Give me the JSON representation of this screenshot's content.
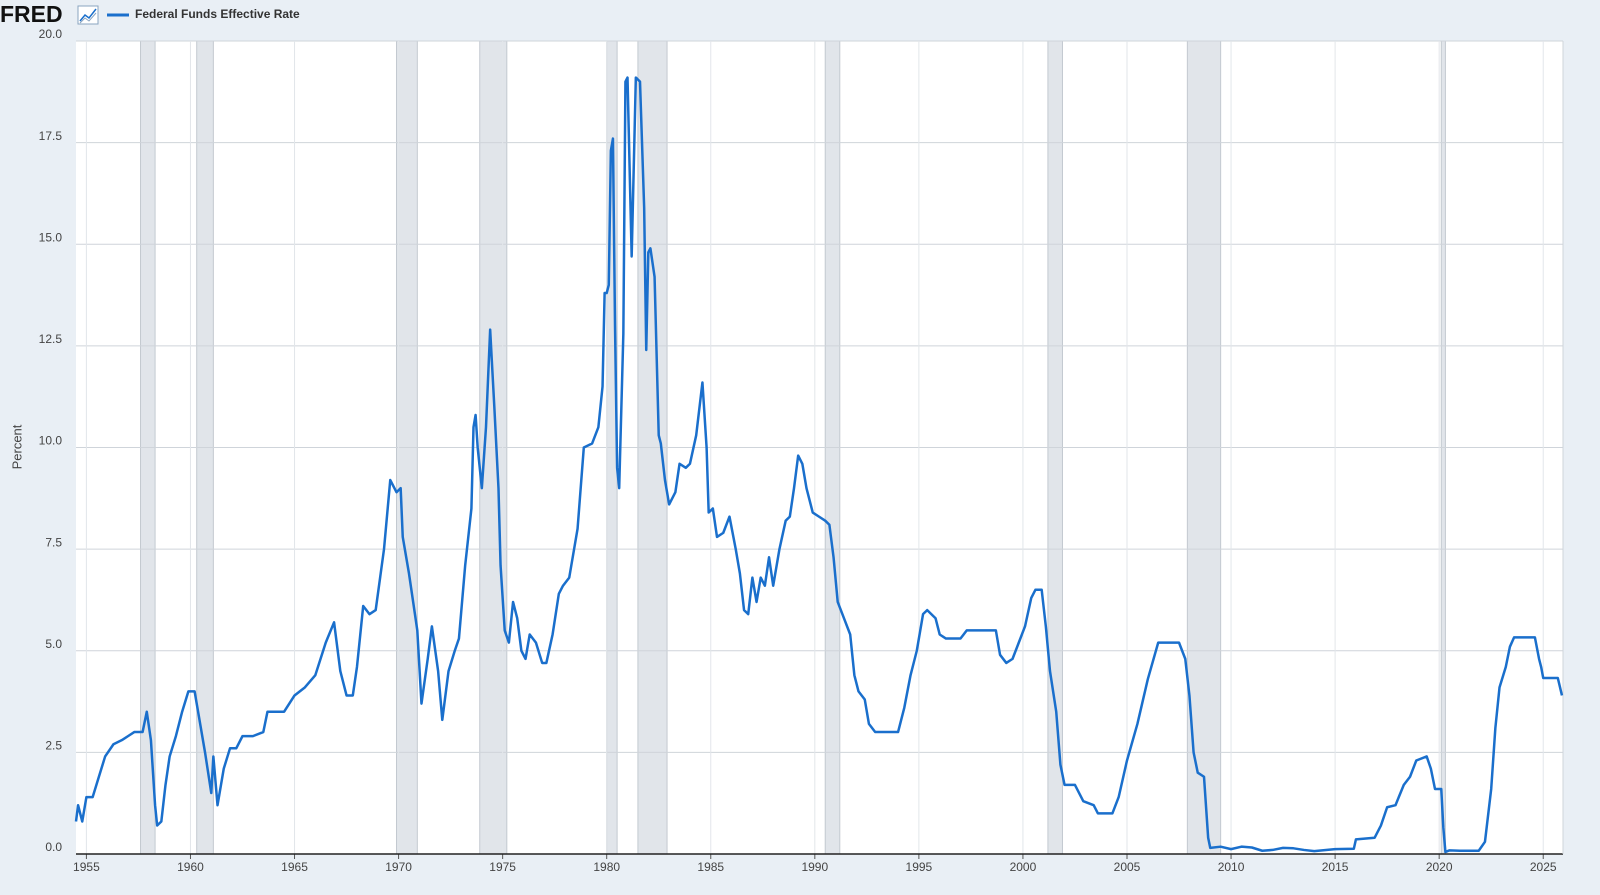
{
  "chart_data": {
    "type": "line",
    "logo": "FRED",
    "ylabel": "Percent",
    "xlim": [
      1954.5,
      2025.95
    ],
    "ylim": [
      0,
      20
    ],
    "xticks": [
      1955,
      1960,
      1965,
      1970,
      1975,
      1980,
      1985,
      1990,
      1995,
      2000,
      2005,
      2010,
      2015,
      2020,
      2025
    ],
    "yticks": [
      {
        "value": 0,
        "label": "0.0"
      },
      2.5,
      {
        "value": 5,
        "label": "5.0"
      },
      7.5,
      {
        "value": 10,
        "label": "10.0"
      },
      12.5,
      {
        "value": 15,
        "label": "15.0"
      },
      17.5,
      {
        "value": 20,
        "label": "20.0"
      }
    ],
    "grid": true,
    "recessions": [
      [
        1957.6,
        1958.3
      ],
      [
        1960.3,
        1961.1
      ],
      [
        1969.9,
        1970.9
      ],
      [
        1973.9,
        1975.2
      ],
      [
        1980.0,
        1980.5
      ],
      [
        1981.5,
        1982.9
      ],
      [
        1990.5,
        1991.2
      ],
      [
        2001.2,
        2001.9
      ],
      [
        2007.9,
        2009.5
      ],
      [
        2020.1,
        2020.3
      ]
    ],
    "x": [
      1954.5,
      1954.6,
      1954.8,
      1955.0,
      1955.3,
      1955.6,
      1955.9,
      1956.3,
      1956.7,
      1957.0,
      1957.3,
      1957.7,
      1957.9,
      1958.1,
      1958.3,
      1958.4,
      1958.6,
      1958.8,
      1959.0,
      1959.3,
      1959.6,
      1959.9,
      1960.2,
      1960.4,
      1960.7,
      1961.0,
      1961.1,
      1961.3,
      1961.6,
      1961.9,
      1962.2,
      1962.5,
      1963.0,
      1963.5,
      1963.7,
      1964.5,
      1965.0,
      1965.5,
      1966.0,
      1966.5,
      1966.9,
      1967.2,
      1967.5,
      1967.8,
      1968.0,
      1968.3,
      1968.6,
      1968.9,
      1969.3,
      1969.6,
      1969.9,
      1970.1,
      1970.2,
      1970.5,
      1970.7,
      1970.9,
      1971.1,
      1971.4,
      1971.6,
      1971.9,
      1972.1,
      1972.4,
      1972.7,
      1972.9,
      1973.2,
      1973.5,
      1973.6,
      1973.7,
      1973.8,
      1974.0,
      1974.2,
      1974.4,
      1974.6,
      1974.8,
      1974.9,
      1975.1,
      1975.3,
      1975.5,
      1975.7,
      1975.9,
      1976.1,
      1976.3,
      1976.6,
      1976.9,
      1977.1,
      1977.4,
      1977.7,
      1977.9,
      1978.2,
      1978.6,
      1978.9,
      1979.3,
      1979.6,
      1979.8,
      1979.9,
      1980.0,
      1980.1,
      1980.2,
      1980.3,
      1980.4,
      1980.5,
      1980.6,
      1980.8,
      1980.9,
      1981.0,
      1981.2,
      1981.4,
      1981.6,
      1981.8,
      1981.9,
      1982.0,
      1982.1,
      1982.3,
      1982.5,
      1982.6,
      1982.8,
      1983.0,
      1983.3,
      1983.5,
      1983.8,
      1984.0,
      1984.3,
      1984.6,
      1984.8,
      1984.9,
      1985.1,
      1985.3,
      1985.6,
      1985.9,
      1986.2,
      1986.4,
      1986.6,
      1986.8,
      1987.0,
      1987.2,
      1987.4,
      1987.6,
      1987.8,
      1988.0,
      1988.3,
      1988.6,
      1988.8,
      1989.0,
      1989.2,
      1989.4,
      1989.6,
      1989.9,
      1990.2,
      1990.5,
      1990.7,
      1990.9,
      1991.1,
      1991.4,
      1991.7,
      1991.9,
      1992.1,
      1992.4,
      1992.6,
      1992.9,
      1993.2,
      1993.6,
      1994.0,
      1994.3,
      1994.6,
      1994.9,
      1995.2,
      1995.4,
      1995.8,
      1996.0,
      1996.3,
      1996.7,
      1997.0,
      1997.3,
      1997.8,
      1998.3,
      1998.7,
      1998.9,
      1999.2,
      1999.5,
      1999.8,
      2000.1,
      2000.4,
      2000.6,
      2000.9,
      2001.1,
      2001.3,
      2001.6,
      2001.8,
      2002.0,
      2002.5,
      2002.9,
      2003.4,
      2003.6,
      2004.3,
      2004.6,
      2005.0,
      2005.5,
      2006.0,
      2006.5,
      2007.5,
      2007.8,
      2008.0,
      2008.2,
      2008.4,
      2008.7,
      2008.9,
      2009.0,
      2009.5,
      2010.0,
      2010.5,
      2011.0,
      2011.5,
      2012.0,
      2012.5,
      2013.0,
      2013.5,
      2014.0,
      2015.0,
      2015.9,
      2016.0,
      2016.9,
      2017.2,
      2017.5,
      2017.9,
      2018.3,
      2018.6,
      2018.9,
      2019.4,
      2019.6,
      2019.8,
      2020.1,
      2020.2,
      2020.3,
      2020.5,
      2021.0,
      2021.9,
      2022.2,
      2022.5,
      2022.7,
      2022.9,
      2023.2,
      2023.4,
      2023.6,
      2024.6,
      2024.8,
      2024.9,
      2025.0,
      2025.7,
      2025.9
    ],
    "series": [
      {
        "name": "Federal Funds Effective Rate",
        "color": "#1a6fcc",
        "values": [
          0.8,
          1.2,
          0.8,
          1.4,
          1.4,
          1.9,
          2.4,
          2.7,
          2.8,
          2.9,
          3.0,
          3.0,
          3.5,
          2.8,
          1.2,
          0.7,
          0.8,
          1.7,
          2.4,
          2.9,
          3.5,
          4.0,
          4.0,
          3.4,
          2.5,
          1.5,
          2.4,
          1.2,
          2.1,
          2.6,
          2.6,
          2.9,
          2.9,
          3.0,
          3.5,
          3.5,
          3.9,
          4.1,
          4.4,
          5.2,
          5.7,
          4.5,
          3.9,
          3.9,
          4.6,
          6.1,
          5.9,
          6.0,
          7.5,
          9.2,
          8.9,
          9.0,
          7.8,
          6.9,
          6.2,
          5.5,
          3.7,
          4.8,
          5.6,
          4.5,
          3.3,
          4.5,
          5.0,
          5.3,
          7.1,
          8.5,
          10.5,
          10.8,
          10.0,
          9.0,
          10.5,
          12.9,
          11.0,
          9.0,
          7.1,
          5.5,
          5.2,
          6.2,
          5.8,
          5.0,
          4.8,
          5.4,
          5.2,
          4.7,
          4.7,
          5.4,
          6.4,
          6.6,
          6.8,
          8.0,
          10.0,
          10.1,
          10.5,
          11.5,
          13.8,
          13.8,
          14.0,
          17.3,
          17.6,
          13.0,
          9.5,
          9.0,
          12.8,
          19.0,
          19.1,
          14.7,
          19.1,
          19.0,
          15.9,
          12.4,
          14.8,
          14.9,
          14.2,
          10.3,
          10.1,
          9.2,
          8.6,
          8.9,
          9.6,
          9.5,
          9.6,
          10.3,
          11.6,
          10.0,
          8.4,
          8.5,
          7.8,
          7.9,
          8.3,
          7.5,
          6.9,
          6.0,
          5.9,
          6.8,
          6.2,
          6.8,
          6.6,
          7.3,
          6.6,
          7.5,
          8.2,
          8.3,
          9.0,
          9.8,
          9.6,
          9.0,
          8.4,
          8.3,
          8.2,
          8.1,
          7.3,
          6.2,
          5.8,
          5.4,
          4.4,
          4.0,
          3.8,
          3.2,
          3.0,
          3.0,
          3.0,
          3.0,
          3.6,
          4.4,
          5.0,
          5.9,
          6.0,
          5.8,
          5.4,
          5.3,
          5.3,
          5.3,
          5.5,
          5.5,
          5.5,
          5.5,
          4.9,
          4.7,
          4.8,
          5.2,
          5.6,
          6.3,
          6.5,
          6.5,
          5.6,
          4.5,
          3.5,
          2.2,
          1.7,
          1.7,
          1.3,
          1.2,
          1.0,
          1.0,
          1.4,
          2.3,
          3.2,
          4.3,
          5.2,
          5.2,
          4.8,
          3.9,
          2.5,
          2.0,
          1.9,
          0.4,
          0.15,
          0.18,
          0.12,
          0.18,
          0.16,
          0.08,
          0.1,
          0.15,
          0.14,
          0.1,
          0.07,
          0.12,
          0.13,
          0.36,
          0.4,
          0.7,
          1.15,
          1.2,
          1.7,
          1.9,
          2.3,
          2.4,
          2.1,
          1.6,
          1.6,
          0.65,
          0.05,
          0.09,
          0.08,
          0.08,
          0.3,
          1.6,
          3.1,
          4.1,
          4.6,
          5.1,
          5.33,
          5.33,
          4.8,
          4.6,
          4.33,
          4.33,
          3.9
        ]
      }
    ]
  }
}
